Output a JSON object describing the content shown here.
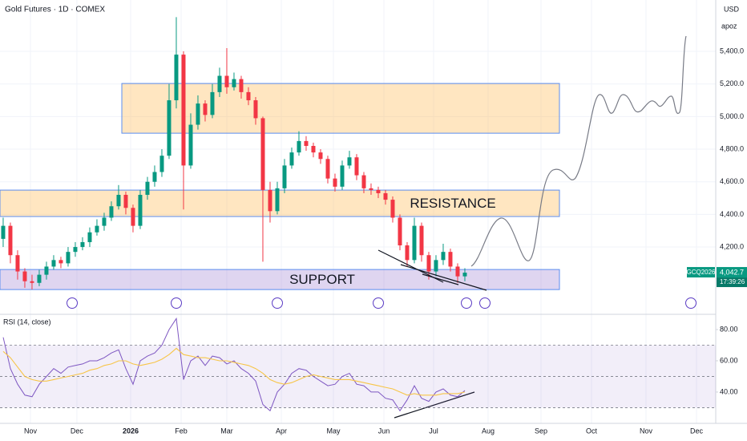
{
  "chart_data": [
    {
      "type": "candlestick",
      "title": "Gold Futures · 1D · COMEX",
      "currency": "USD",
      "user": "apoz",
      "symbol": "GCQ2026",
      "countdown": "17:39:26",
      "up_color": "#089981",
      "down_color": "#f23645",
      "grid": true,
      "categories": [
        null,
        null,
        null,
        null,
        null,
        null,
        null,
        null,
        null,
        null,
        null,
        null,
        null,
        null,
        null,
        null,
        null,
        null,
        null,
        null,
        null,
        null,
        null,
        null,
        null,
        null,
        null,
        null,
        null,
        null,
        null,
        null,
        null,
        null,
        null,
        null,
        null,
        null,
        null,
        null,
        null,
        null,
        null,
        null,
        null,
        null,
        null,
        null,
        null,
        null,
        null,
        null,
        null,
        null,
        null,
        null,
        null,
        null,
        null,
        null,
        null,
        null,
        null,
        null,
        null
      ],
      "open": [
        4250,
        4330,
        4150,
        4050,
        3990,
        3980,
        4030,
        4080,
        4120,
        4100,
        4170,
        4200,
        4230,
        4290,
        4330,
        4380,
        4450,
        4520,
        4440,
        4330,
        4520,
        4600,
        4660,
        4760,
        5100,
        5380,
        4700,
        4950,
        5080,
        5010,
        5150,
        5250,
        5180,
        5230,
        5150,
        5100,
        4990,
        4550,
        4420,
        4560,
        4700,
        4780,
        4850,
        4820,
        4780,
        4740,
        4620,
        4570,
        4700,
        4750,
        4640,
        4560,
        4550,
        4530,
        4490,
        4380,
        4210,
        4120,
        4330,
        4150,
        4050,
        4120,
        4170,
        4080,
        4020
      ],
      "high": [
        4380,
        4350,
        4180,
        4070,
        4030,
        4060,
        4110,
        4150,
        4140,
        4200,
        4230,
        4260,
        4320,
        4370,
        4410,
        4480,
        4580,
        4540,
        4460,
        4550,
        4630,
        4700,
        4800,
        5200,
        5610,
        5400,
        5020,
        5130,
        5100,
        5200,
        5300,
        5420,
        5270,
        5250,
        5180,
        5120,
        5000,
        4600,
        4600,
        4740,
        4810,
        4910,
        4880,
        4840,
        4800,
        4760,
        4650,
        4730,
        4790,
        4770,
        4660,
        4590,
        4570,
        4550,
        4510,
        4400,
        4230,
        4380,
        4350,
        4170,
        4150,
        4220,
        4190,
        4100,
        4070
      ],
      "low": [
        4200,
        4100,
        4000,
        3950,
        3940,
        3960,
        4000,
        4060,
        4070,
        4080,
        4140,
        4180,
        4200,
        4270,
        4300,
        4360,
        4430,
        4400,
        4290,
        4310,
        4490,
        4570,
        4630,
        4740,
        5050,
        4430,
        4680,
        4920,
        4970,
        4990,
        5120,
        5140,
        5160,
        5110,
        5070,
        4950,
        4110,
        4350,
        4400,
        4530,
        4680,
        4760,
        4790,
        4750,
        4710,
        4590,
        4540,
        4550,
        4680,
        4610,
        4530,
        4520,
        4500,
        4460,
        4350,
        4180,
        4080,
        4100,
        4110,
        4000,
        4020,
        4090,
        4050,
        3980,
        3990
      ],
      "close": [
        4330,
        4150,
        4050,
        3990,
        3980,
        4030,
        4080,
        4120,
        4100,
        4170,
        4200,
        4230,
        4290,
        4330,
        4380,
        4450,
        4520,
        4440,
        4330,
        4520,
        4600,
        4660,
        4760,
        5100,
        5380,
        4700,
        4950,
        5080,
        5010,
        5150,
        5250,
        5180,
        5230,
        5150,
        5100,
        4990,
        4550,
        4420,
        4560,
        4700,
        4780,
        4850,
        4820,
        4780,
        4740,
        4620,
        4570,
        4700,
        4750,
        4640,
        4560,
        4550,
        4530,
        4490,
        4380,
        4210,
        4120,
        4330,
        4150,
        4050,
        4120,
        4170,
        4080,
        4020,
        4042.7
      ],
      "price_tag": {
        "value": 4042.7,
        "label": "4,042.7"
      },
      "ylim": [
        3797,
        5715
      ],
      "yticks": [
        {
          "value": 5400,
          "label": "5,400.0"
        },
        {
          "value": 5200,
          "label": "5,200.0"
        },
        {
          "value": 5000,
          "label": "5,000.0"
        },
        {
          "value": 4800,
          "label": "4,800.0"
        },
        {
          "value": 4600,
          "label": "4,600.0"
        },
        {
          "value": 4400,
          "label": "4,400.0"
        },
        {
          "value": 4200,
          "label": "4,200.0"
        }
      ],
      "xlim": [
        -0.44,
        98.78
      ],
      "xticks": [
        {
          "value": 3.78,
          "label": "Nov"
        },
        {
          "value": 10.22,
          "label": "Dec"
        },
        {
          "value": 17.67,
          "label": "2026"
        },
        {
          "value": 24.67,
          "label": "Feb"
        },
        {
          "value": 31,
          "label": "Mar"
        },
        {
          "value": 38.56,
          "label": "Apr"
        },
        {
          "value": 45.78,
          "label": "May"
        },
        {
          "value": 52.78,
          "label": "Jun"
        },
        {
          "value": 59.67,
          "label": "Jul"
        },
        {
          "value": 67.22,
          "label": "Aug"
        },
        {
          "value": 74.56,
          "label": "Sep"
        },
        {
          "value": 81.56,
          "label": "Oct"
        },
        {
          "value": 89.11,
          "label": "Nov"
        },
        {
          "value": 96.11,
          "label": "Dec"
        }
      ],
      "zones": [
        {
          "label": "RESISTANCE",
          "range": [
            4387,
            4549
          ]
        },
        {
          "range": [
            4898,
            5203
          ]
        },
        {
          "label": "SUPPORT",
          "range": [
            3939,
            4062
          ]
        }
      ]
    },
    {
      "type": "line",
      "title": "RSI (14, close)",
      "grid": true,
      "series": [
        {
          "color": "#7e57c2",
          "values": [
            75,
            55,
            45,
            38,
            37,
            45,
            50,
            55,
            52,
            56,
            57,
            58,
            60,
            60,
            62,
            65,
            67,
            55,
            45,
            60,
            63,
            65,
            70,
            80,
            87,
            48,
            60,
            63,
            57,
            63,
            62,
            58,
            60,
            55,
            52,
            47,
            32,
            28,
            40,
            45,
            52,
            55,
            54,
            50,
            47,
            44,
            45,
            50,
            52,
            45,
            44,
            40,
            40,
            36,
            35,
            28,
            35,
            44,
            36,
            34,
            40,
            42,
            38,
            37,
            41
          ]
        },
        {
          "color": "#f7c548",
          "values": [
            66,
            62,
            56,
            50,
            48,
            47,
            47,
            48,
            49,
            50,
            51,
            52,
            54,
            55,
            57,
            58,
            60,
            60,
            58,
            57,
            58,
            59,
            61,
            64,
            68,
            64,
            63,
            62,
            62,
            61,
            60,
            60,
            59,
            58,
            57,
            55,
            52,
            48,
            46,
            45,
            46,
            48,
            50,
            51,
            50,
            49,
            48,
            48,
            48,
            47,
            46,
            45,
            44,
            43,
            42,
            40,
            38,
            39,
            38,
            38,
            38,
            39,
            39,
            39,
            40
          ]
        }
      ],
      "levels": [
        70,
        50,
        30
      ],
      "ylim": [
        21.5,
        88.2
      ],
      "yticks": [
        {
          "value": 80,
          "label": "80.00"
        },
        {
          "value": 60,
          "label": "60.00"
        },
        {
          "value": 40,
          "label": "40.00"
        }
      ]
    }
  ]
}
